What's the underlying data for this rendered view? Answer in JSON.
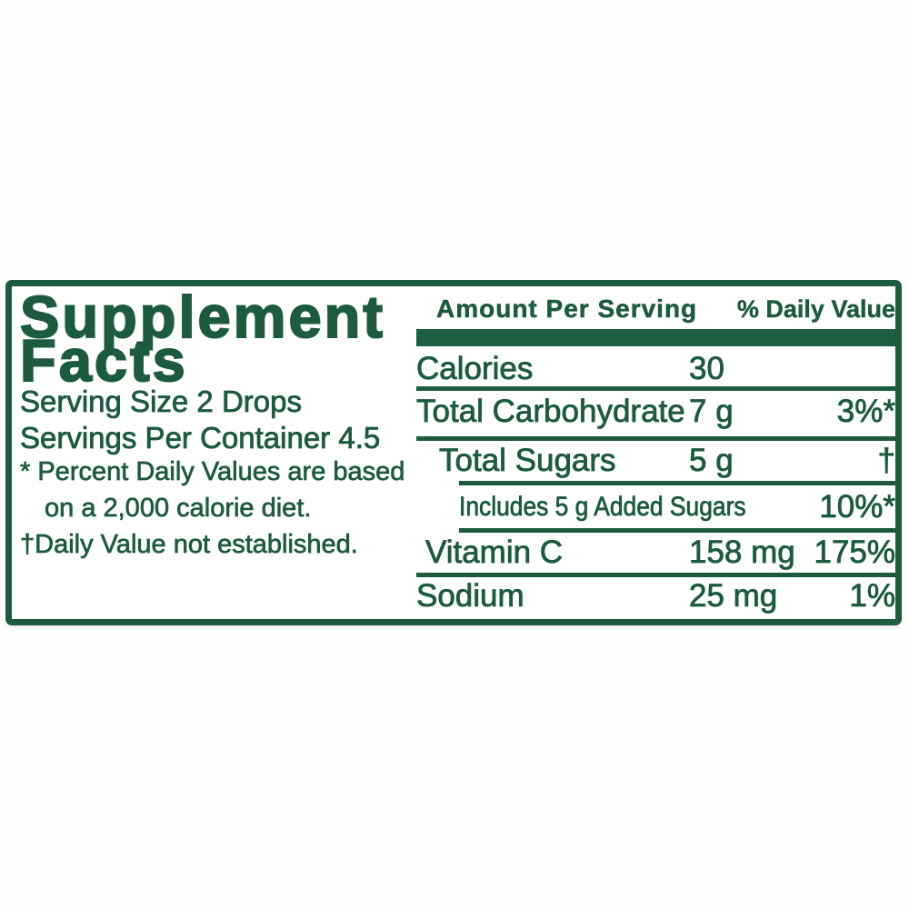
{
  "colors": {
    "green": "#1d5b3e",
    "bar_green": "#1e5e41",
    "background": "#ffffff"
  },
  "label": {
    "title_line1": "Supplement",
    "title_line2": "Facts",
    "serving_size": "Serving Size 2 Drops",
    "servings_per_container": "Servings Per Container 4.5",
    "footnote_percent_line1": "* Percent Daily Values are based",
    "footnote_percent_line2": "on a 2,000 calorie diet.",
    "footnote_dagger": "†Daily Value not established."
  },
  "table": {
    "header": {
      "amount": "Amount Per Serving",
      "dv": "% Daily Value"
    },
    "rows": [
      {
        "name": "Calories",
        "amount": "30",
        "dv": ""
      },
      {
        "name": "Total Carbohydrate",
        "amount": "7 g",
        "dv": "3%*"
      },
      {
        "name": "Total Sugars",
        "amount": "5 g",
        "dv": "†"
      },
      {
        "name": "Includes 5 g Added Sugars",
        "amount": "",
        "dv": "10%*"
      },
      {
        "name": "Vitamin C",
        "amount": "158 mg",
        "dv": "175%"
      },
      {
        "name": "Sodium",
        "amount": "25 mg",
        "dv": "1%"
      }
    ]
  }
}
